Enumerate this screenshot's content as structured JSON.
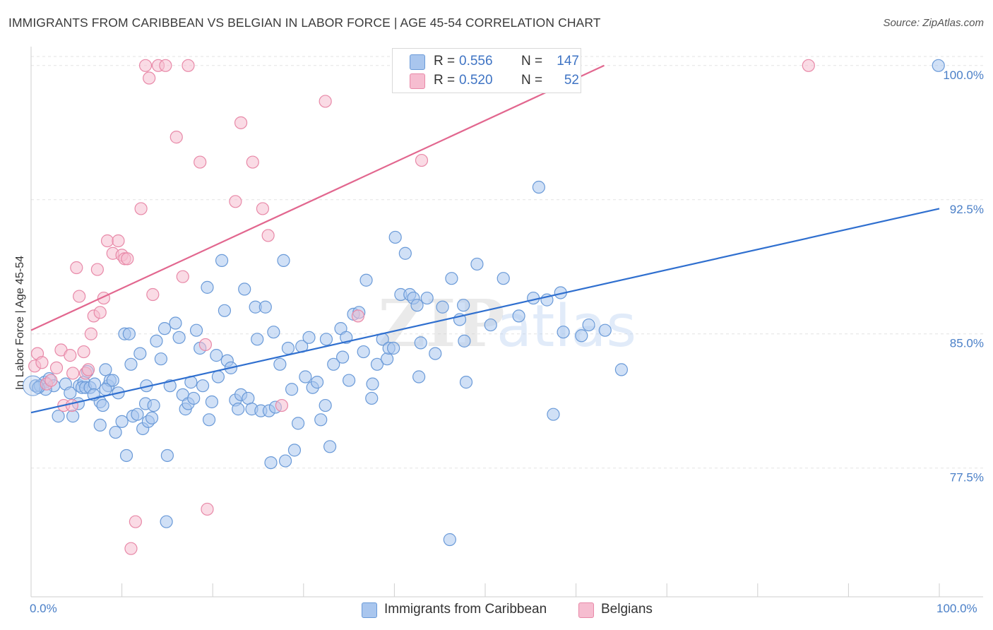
{
  "title": "IMMIGRANTS FROM CARIBBEAN VS BELGIAN IN LABOR FORCE | AGE 45-54 CORRELATION CHART",
  "source": "Source: ZipAtlas.com",
  "colors": {
    "blue_fill": "#a9c6ee",
    "blue_stroke": "#6a9ad8",
    "blue_line": "#2f6fcf",
    "pink_fill": "#f6bdd0",
    "pink_stroke": "#e889a8",
    "pink_line": "#e2678f",
    "grid": "#e3e3e3",
    "tick_label": "#4a7fc7"
  },
  "legend_top": {
    "rows": [
      {
        "series": "Immigrants from Caribbean",
        "r_label": "R =",
        "r_value": "0.556",
        "n_label": "N =",
        "n_value": "147"
      },
      {
        "series": "Belgians",
        "r_label": "R =",
        "r_value": "0.520",
        "n_label": "N =",
        "n_value": "52"
      }
    ]
  },
  "chart_data": {
    "type": "scatter",
    "title": "IMMIGRANTS FROM CARIBBEAN VS BELGIAN IN LABOR FORCE | AGE 45-54 CORRELATION CHART",
    "xlabel": "",
    "ylabel": "In Labor Force | Age 45-54",
    "xlim": [
      0,
      100
    ],
    "ylim": [
      70.5,
      100.9
    ],
    "x_tick_labels": [
      "0.0%",
      "100.0%"
    ],
    "y_ticks": [
      77.5,
      85.0,
      92.5,
      100.0
    ],
    "y_tick_labels": [
      "77.5%",
      "85.0%",
      "92.5%",
      "100.0%"
    ],
    "grid": true,
    "legend_position": "top-center",
    "watermark": "ZIPatlas",
    "series": [
      {
        "name": "Immigrants from Caribbean",
        "r": 0.556,
        "n": 147,
        "trendline": {
          "x": [
            0,
            100
          ],
          "y": [
            80.6,
            92.0
          ]
        },
        "points": [
          [
            0.5,
            82.1
          ],
          [
            1.5,
            82.3
          ],
          [
            2,
            82.5
          ],
          [
            3,
            80.4
          ],
          [
            2.5,
            82.1
          ],
          [
            3.8,
            82.2
          ],
          [
            4.3,
            81.7
          ],
          [
            4.6,
            80.4
          ],
          [
            5.3,
            82.1
          ],
          [
            5.8,
            82.3
          ],
          [
            5.6,
            82.0
          ],
          [
            5.2,
            81.1
          ],
          [
            6.0,
            82.0
          ],
          [
            6.2,
            82.9
          ],
          [
            6.5,
            82.0
          ],
          [
            7.0,
            82.2
          ],
          [
            7.6,
            81.2
          ],
          [
            7.6,
            79.9
          ],
          [
            7.9,
            81.0
          ],
          [
            8.2,
            83.0
          ],
          [
            8.5,
            82.1
          ],
          [
            8.7,
            82.4
          ],
          [
            9.0,
            82.4
          ],
          [
            9.3,
            79.5
          ],
          [
            9.6,
            81.7
          ],
          [
            10.0,
            80.1
          ],
          [
            10.3,
            85.0
          ],
          [
            10.5,
            78.2
          ],
          [
            10.8,
            85.0
          ],
          [
            11.2,
            80.4
          ],
          [
            11.7,
            80.5
          ],
          [
            12.0,
            83.9
          ],
          [
            12.3,
            79.7
          ],
          [
            12.6,
            81.1
          ],
          [
            12.9,
            80.1
          ],
          [
            13.3,
            80.3
          ],
          [
            13.5,
            81.0
          ],
          [
            13.8,
            84.6
          ],
          [
            14.3,
            83.6
          ],
          [
            14.7,
            85.3
          ],
          [
            15.0,
            78.2
          ],
          [
            15.3,
            82.1
          ],
          [
            15.9,
            85.6
          ],
          [
            16.3,
            84.8
          ],
          [
            16.7,
            81.6
          ],
          [
            17.0,
            80.8
          ],
          [
            17.3,
            81.1
          ],
          [
            17.6,
            82.3
          ],
          [
            17.9,
            81.4
          ],
          [
            18.2,
            85.2
          ],
          [
            18.6,
            84.2
          ],
          [
            18.9,
            82.1
          ],
          [
            19.4,
            87.6
          ],
          [
            19.6,
            80.2
          ],
          [
            19.9,
            81.2
          ],
          [
            20.4,
            83.8
          ],
          [
            20.6,
            82.6
          ],
          [
            21.0,
            89.1
          ],
          [
            21.3,
            86.3
          ],
          [
            21.6,
            83.5
          ],
          [
            22.0,
            83.1
          ],
          [
            22.5,
            81.3
          ],
          [
            22.8,
            80.8
          ],
          [
            23.1,
            81.6
          ],
          [
            23.5,
            87.5
          ],
          [
            23.9,
            81.4
          ],
          [
            24.3,
            80.8
          ],
          [
            24.7,
            86.5
          ],
          [
            24.9,
            84.7
          ],
          [
            25.3,
            80.7
          ],
          [
            25.8,
            86.5
          ],
          [
            26.2,
            80.7
          ],
          [
            26.4,
            77.8
          ],
          [
            26.7,
            85.1
          ],
          [
            26.9,
            80.9
          ],
          [
            27.4,
            83.3
          ],
          [
            27.8,
            89.1
          ],
          [
            28.0,
            77.9
          ],
          [
            28.3,
            84.2
          ],
          [
            28.7,
            81.9
          ],
          [
            29.0,
            78.5
          ],
          [
            29.4,
            80.0
          ],
          [
            29.8,
            84.3
          ],
          [
            30.2,
            82.6
          ],
          [
            30.6,
            84.8
          ],
          [
            31.0,
            82.0
          ],
          [
            31.5,
            82.3
          ],
          [
            31.9,
            80.2
          ],
          [
            32.4,
            81.0
          ],
          [
            32.5,
            84.7
          ],
          [
            32.9,
            78.7
          ],
          [
            33.3,
            83.3
          ],
          [
            34.1,
            85.3
          ],
          [
            34.3,
            83.7
          ],
          [
            34.7,
            84.8
          ],
          [
            35.0,
            82.4
          ],
          [
            35.5,
            86.1
          ],
          [
            36.1,
            86.2
          ],
          [
            36.6,
            84.0
          ],
          [
            36.9,
            88.0
          ],
          [
            37.5,
            81.4
          ],
          [
            37.6,
            82.2
          ],
          [
            38.1,
            83.3
          ],
          [
            38.7,
            84.7
          ],
          [
            39.2,
            83.6
          ],
          [
            39.4,
            84.2
          ],
          [
            39.9,
            84.2
          ],
          [
            40.1,
            90.4
          ],
          [
            40.7,
            87.2
          ],
          [
            41.2,
            89.5
          ],
          [
            41.7,
            87.2
          ],
          [
            42.1,
            87.0
          ],
          [
            42.5,
            86.6
          ],
          [
            42.7,
            82.6
          ],
          [
            42.9,
            84.5
          ],
          [
            43.6,
            87.0
          ],
          [
            45.3,
            86.5
          ],
          [
            46.3,
            88.1
          ],
          [
            47.2,
            85.8
          ],
          [
            47.6,
            86.6
          ],
          [
            47.7,
            84.6
          ],
          [
            47.9,
            82.3
          ],
          [
            49.1,
            88.9
          ],
          [
            50.6,
            85.5
          ],
          [
            52.0,
            88.1
          ],
          [
            53.7,
            86.0
          ],
          [
            55.3,
            87.0
          ],
          [
            56.8,
            86.9
          ],
          [
            58.6,
            85.1
          ],
          [
            60.6,
            84.9
          ],
          [
            61.4,
            85.5
          ],
          [
            63.2,
            85.2
          ],
          [
            65.0,
            83.0
          ],
          [
            1.0,
            82.1
          ],
          [
            1.6,
            81.9
          ],
          [
            55.9,
            93.2
          ],
          [
            58.3,
            87.3
          ],
          [
            57.5,
            80.5
          ],
          [
            12.7,
            82.1
          ],
          [
            8.2,
            81.9
          ],
          [
            11.0,
            83.3
          ],
          [
            14.9,
            74.5
          ],
          [
            46.1,
            73.5
          ],
          [
            99.9,
            100.0
          ],
          [
            0.8,
            82.0
          ],
          [
            6.9,
            81.6
          ],
          [
            44.5,
            83.9
          ]
        ]
      },
      {
        "name": "Belgians",
        "r": 0.52,
        "n": 52,
        "trendline": {
          "x": [
            0,
            63.1
          ],
          "y": [
            85.2,
            100.0
          ]
        },
        "points": [
          [
            0.4,
            83.2
          ],
          [
            0.7,
            83.9
          ],
          [
            1.2,
            83.4
          ],
          [
            1.7,
            82.2
          ],
          [
            2.2,
            82.4
          ],
          [
            2.8,
            83.1
          ],
          [
            3.3,
            84.1
          ],
          [
            3.6,
            81.0
          ],
          [
            4.3,
            83.8
          ],
          [
            4.5,
            81.0
          ],
          [
            4.6,
            82.8
          ],
          [
            5.0,
            88.7
          ],
          [
            5.3,
            87.1
          ],
          [
            5.8,
            84.0
          ],
          [
            6.0,
            82.8
          ],
          [
            6.3,
            83.0
          ],
          [
            6.6,
            85.0
          ],
          [
            6.9,
            86.0
          ],
          [
            7.3,
            88.6
          ],
          [
            7.6,
            86.2
          ],
          [
            8.0,
            87.0
          ],
          [
            8.4,
            90.2
          ],
          [
            9.0,
            89.5
          ],
          [
            9.6,
            90.2
          ],
          [
            10.0,
            89.4
          ],
          [
            10.3,
            89.2
          ],
          [
            10.6,
            89.2
          ],
          [
            11.0,
            73.0
          ],
          [
            11.5,
            74.5
          ],
          [
            12.1,
            92.0
          ],
          [
            12.6,
            100.0
          ],
          [
            13.0,
            99.3
          ],
          [
            13.4,
            87.2
          ],
          [
            14.0,
            100.0
          ],
          [
            14.8,
            100.0
          ],
          [
            16.0,
            96.0
          ],
          [
            16.7,
            88.2
          ],
          [
            17.3,
            100.0
          ],
          [
            18.6,
            94.6
          ],
          [
            19.2,
            84.4
          ],
          [
            19.4,
            75.2
          ],
          [
            22.5,
            92.4
          ],
          [
            23.1,
            96.8
          ],
          [
            24.4,
            94.6
          ],
          [
            25.5,
            92.0
          ],
          [
            26.1,
            90.5
          ],
          [
            27.6,
            81.0
          ],
          [
            32.4,
            98.0
          ],
          [
            36.0,
            86.0
          ],
          [
            43.0,
            94.7
          ],
          [
            54.1,
            100.0
          ],
          [
            85.6,
            100.0
          ]
        ]
      }
    ]
  }
}
